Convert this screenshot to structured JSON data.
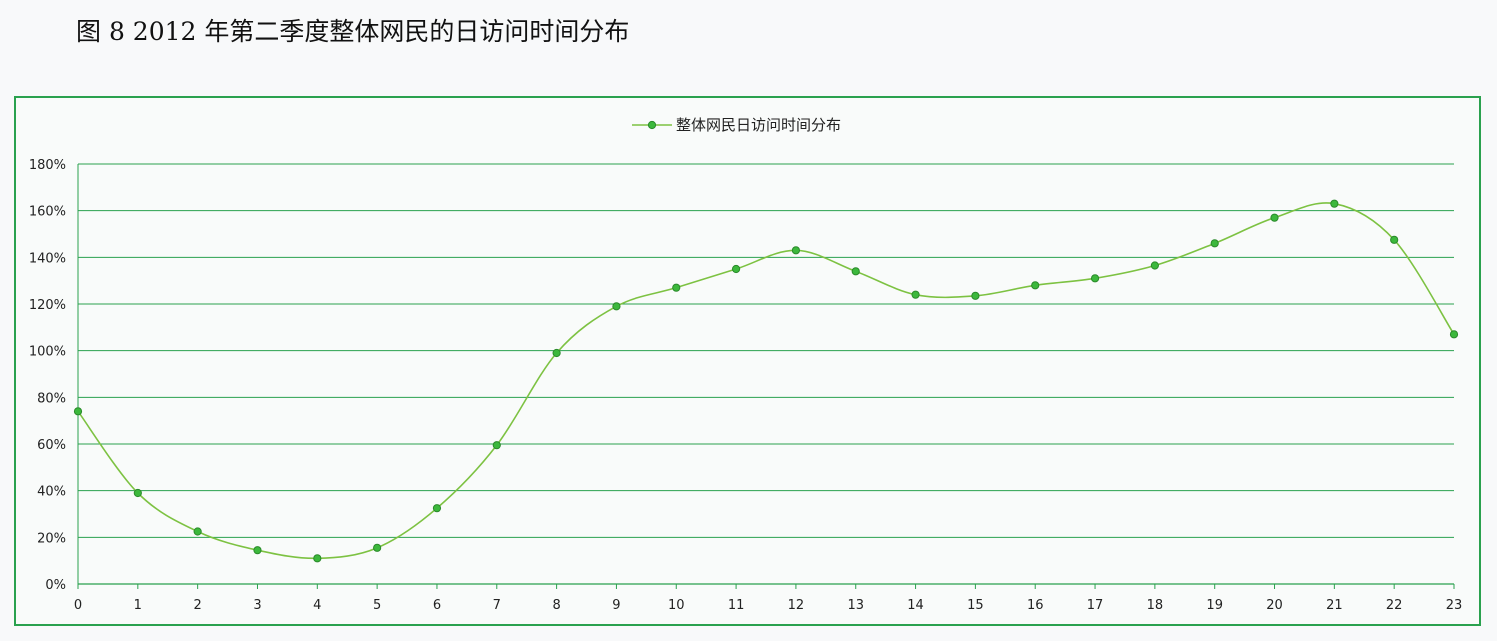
{
  "figure": {
    "caption": "图 8  2012 年第二季度整体网民的日访问时间分布"
  },
  "chart_data": {
    "type": "line",
    "legend": {
      "position": "top-center"
    },
    "x": [
      "0",
      "1",
      "2",
      "3",
      "4",
      "5",
      "6",
      "7",
      "8",
      "9",
      "10",
      "11",
      "12",
      "13",
      "14",
      "15",
      "16",
      "17",
      "18",
      "19",
      "20",
      "21",
      "22",
      "23"
    ],
    "series": [
      {
        "name": "整体网民日访问时间分布",
        "color": "#7dc242",
        "marker_color": "#3cb83c",
        "values": [
          74,
          39,
          22.5,
          14.5,
          11,
          15.5,
          32.5,
          59.5,
          99,
          119,
          127,
          135,
          143,
          134,
          124,
          123.5,
          128,
          131,
          136.5,
          146,
          157,
          163,
          147.5,
          107
        ]
      }
    ],
    "ylim": [
      0,
      180
    ],
    "y_ticks": [
      "0%",
      "20%",
      "40%",
      "60%",
      "80%",
      "100%",
      "120%",
      "140%",
      "160%",
      "180%"
    ],
    "grid": true,
    "grid_color": "#2aa14e",
    "xlabel": "",
    "ylabel": ""
  }
}
